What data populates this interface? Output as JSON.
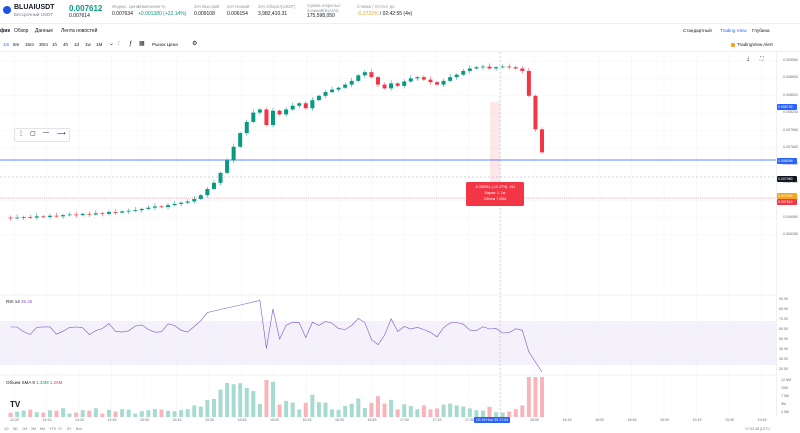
{
  "header": {
    "symbol": "BLUAIUSDT",
    "symbol_sub": "Бессрочный USDT",
    "price": "0.007612",
    "price_sub": "0.007614",
    "stats": [
      {
        "label": "Индекс. Цена",
        "value": "0.007634",
        "tone": ""
      },
      {
        "label": "Изменение %",
        "value": "+0.001380 (+22.14%)",
        "tone": "green"
      },
      {
        "label": "24ч Высокий",
        "value": "0.009108",
        "tone": ""
      },
      {
        "label": "24ч Низкий",
        "value": "0.006154",
        "tone": ""
      },
      {
        "label": "24ч Оборот(USDT)",
        "value": "3,982,410.31",
        "tone": ""
      },
      {
        "label": "Сумма открытых позиций(BLUAI)",
        "value": "175,598,050",
        "tone": ""
      },
      {
        "label": "Ставка / Отсчет до",
        "value": "-0.2722%",
        "time": " / 02:42:55 (4ч)",
        "tone": "orange"
      }
    ]
  },
  "tabs": [
    "Обзор",
    "Данные",
    "Лента новостей"
  ],
  "tabs_active": "фик",
  "timeframes": [
    "5m",
    "15m",
    "30m",
    "1h",
    "4h",
    "1d",
    "1w",
    "1M"
  ],
  "active_timeframe": "1m",
  "toolbar": {
    "price_type": "Рынок Цена"
  },
  "views": {
    "standard": "Стандартный",
    "trading_view": "Trading View",
    "depth": "Глубина"
  },
  "tv_alert": "TradingView Alert",
  "y_axis": [
    "0.009080",
    "0.008800",
    "0.008520",
    "0.008240",
    "0.007960",
    "0.007680",
    "0.007400",
    "0.007120",
    "0.006840",
    "0.006560",
    "0.006280"
  ],
  "price_tags": [
    {
      "value": "0.008792",
      "color": "#2962ff"
    },
    {
      "value": "0.008095",
      "color": "#2962ff"
    },
    {
      "value": "0.007980",
      "color": "#131722"
    },
    {
      "value": "0.007634",
      "color": "#f7a21b"
    },
    {
      "value": "0.007612",
      "color": "#f23645"
    }
  ],
  "tooltip": {
    "line1": "-0.000911 (-10.37%) -911",
    "line2": "Баров: 1, 1м",
    "line3": "Объем 7,09M"
  },
  "rsi": {
    "label": "RSI 14",
    "value": "35.46",
    "ticks": [
      "90.00",
      "80.00",
      "70.00",
      "60.00",
      "50.00",
      "40.00",
      "30.00",
      "20.00"
    ]
  },
  "volume": {
    "label": "Объем SMA 9",
    "v1": "1.34M",
    "v2": "1.25M",
    "ticks": [
      "12.5M",
      "10M",
      "7.5M",
      "5M",
      "2.5M"
    ]
  },
  "x_axis": [
    "12:20",
    "14:15",
    "14:30",
    "14:45",
    "15:00",
    "15:15",
    "15:30",
    "15:45",
    "16:00",
    "16:15",
    "16:30",
    "16:45",
    "17:00",
    "17:15",
    "17:30",
    "17:45",
    "18:00",
    "18:15",
    "18:30",
    "18:45",
    "19:00",
    "19:15",
    "19:30",
    "19:45"
  ],
  "x_active": "Сб 15 Ноя '25  17:03",
  "bottom": [
    "1D",
    "5D",
    "1M",
    "3M",
    "6M",
    "YTD",
    "1Y",
    "5Y",
    "Все"
  ],
  "utc": "17:03:38 (UTC)",
  "chart_data": {
    "type": "candlestick",
    "series": [
      {
        "name": "price",
        "values": [
          6.56,
          6.55,
          6.56,
          6.57,
          6.56,
          6.58,
          6.57,
          6.59,
          6.58,
          6.6,
          6.61,
          6.6,
          6.62,
          6.61,
          6.63,
          6.62,
          6.65,
          6.64,
          6.66,
          6.67,
          6.68,
          6.7,
          6.72,
          6.74,
          6.73,
          6.76,
          6.78,
          6.8,
          6.82,
          6.86,
          6.92,
          7.02,
          7.12,
          7.28,
          7.48,
          7.7,
          7.92,
          8.1,
          8.25,
          8.3,
          8.05,
          8.28,
          8.22,
          8.3,
          8.36,
          8.4,
          8.32,
          8.45,
          8.52,
          8.58,
          8.62,
          8.65,
          8.7,
          8.76,
          8.85,
          8.9,
          8.82,
          8.7,
          8.64,
          8.72,
          8.68,
          8.75,
          8.8,
          8.82,
          8.78,
          8.74,
          8.7,
          8.76,
          8.82,
          8.86,
          8.92,
          8.96,
          8.98,
          8.99,
          8.96,
          8.98,
          8.99,
          8.98,
          8.96,
          8.92,
          8.52,
          7.98,
          7.61
        ]
      }
    ]
  }
}
